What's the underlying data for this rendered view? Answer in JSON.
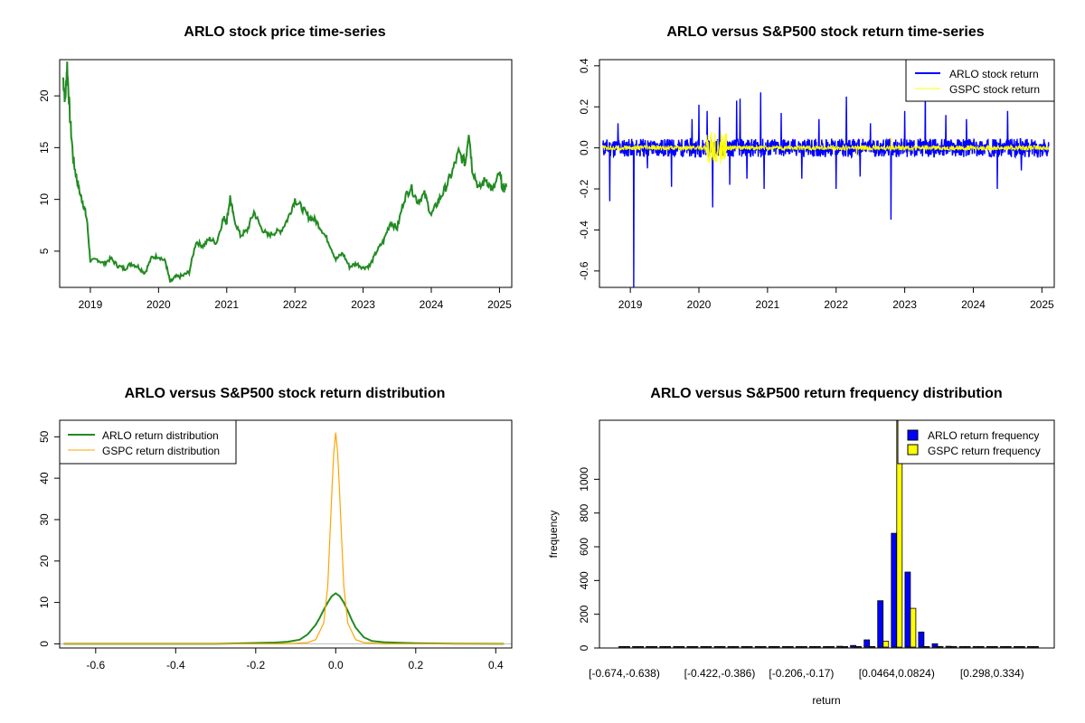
{
  "colors": {
    "arlo_price": "#228B22",
    "arlo_return": "#0000FF",
    "gspc_return": "#FFFF00",
    "arlo_density": "#228B22",
    "gspc_density": "#FFA500",
    "arlo_hist": "#0000FF",
    "gspc_hist": "#FFFF00"
  },
  "chart_data": [
    {
      "type": "line",
      "title": "ARLO stock price time-series",
      "xlabel": "",
      "ylabel": "",
      "x_ticks": [
        "2019",
        "2020",
        "2021",
        "2022",
        "2023",
        "2024",
        "2025"
      ],
      "y_ticks": [
        "5",
        "10",
        "15",
        "20"
      ],
      "xlim": [
        2018.55,
        2025.18
      ],
      "ylim": [
        1.5,
        23.5
      ],
      "series": [
        {
          "color": "arlo_price",
          "x": [
            2018.6,
            2018.63,
            2018.66,
            2018.7,
            2018.75,
            2018.8,
            2018.85,
            2018.9,
            2018.95,
            2019.0,
            2019.1,
            2019.2,
            2019.3,
            2019.4,
            2019.5,
            2019.6,
            2019.7,
            2019.8,
            2019.9,
            2020.0,
            2020.1,
            2020.17,
            2020.25,
            2020.35,
            2020.45,
            2020.55,
            2020.65,
            2020.75,
            2020.85,
            2020.95,
            2021.0,
            2021.05,
            2021.1,
            2021.2,
            2021.3,
            2021.4,
            2021.5,
            2021.6,
            2021.7,
            2021.8,
            2021.9,
            2022.0,
            2022.1,
            2022.2,
            2022.3,
            2022.4,
            2022.5,
            2022.6,
            2022.7,
            2022.8,
            2022.9,
            2023.0,
            2023.1,
            2023.2,
            2023.3,
            2023.4,
            2023.5,
            2023.6,
            2023.7,
            2023.8,
            2023.9,
            2024.0,
            2024.1,
            2024.2,
            2024.3,
            2024.4,
            2024.5,
            2024.55,
            2024.6,
            2024.7,
            2024.8,
            2024.9,
            2025.0,
            2025.05,
            2025.1
          ],
          "y": [
            21.8,
            19.5,
            23.0,
            18.0,
            13.8,
            12.0,
            10.5,
            9.5,
            8.0,
            4.0,
            4.2,
            3.8,
            4.3,
            3.6,
            3.3,
            3.8,
            3.5,
            2.9,
            4.4,
            4.5,
            4.0,
            2.0,
            2.5,
            2.6,
            3.0,
            5.9,
            5.5,
            6.2,
            5.8,
            8.2,
            7.9,
            10.2,
            8.3,
            6.5,
            7.0,
            8.8,
            7.3,
            6.5,
            6.8,
            7.0,
            8.2,
            10.0,
            9.2,
            8.3,
            8.0,
            7.0,
            5.8,
            4.2,
            4.8,
            3.5,
            3.8,
            3.4,
            3.6,
            5.0,
            6.0,
            7.8,
            7.2,
            10.0,
            11.2,
            9.8,
            10.5,
            8.5,
            9.8,
            11.0,
            12.5,
            14.5,
            13.5,
            16.7,
            13.0,
            11.0,
            12.0,
            10.8,
            12.5,
            11.0,
            11.2
          ]
        }
      ]
    },
    {
      "type": "line",
      "title": "ARLO versus S&P500 stock return time-series",
      "xlabel": "",
      "ylabel": "",
      "x_ticks": [
        "2019",
        "2020",
        "2021",
        "2022",
        "2023",
        "2024",
        "2025"
      ],
      "y_ticks": [
        "-0.6",
        "-0.4",
        "-0.2",
        "0.0",
        "0.2",
        "0.4"
      ],
      "xlim": [
        2018.55,
        2025.18
      ],
      "ylim": [
        -0.68,
        0.43
      ],
      "legend_position": "top-right",
      "legend": [
        "ARLO stock return",
        "GSPC stock return"
      ],
      "series": [
        {
          "name": "ARLO stock return",
          "color": "arlo_return",
          "band": 0.045,
          "spikes": [
            [
              2018.7,
              -0.26
            ],
            [
              2018.82,
              0.12
            ],
            [
              2019.05,
              -0.68
            ],
            [
              2019.25,
              -0.1
            ],
            [
              2019.6,
              -0.19
            ],
            [
              2019.9,
              0.14
            ],
            [
              2020.0,
              0.21
            ],
            [
              2020.12,
              0.18
            ],
            [
              2020.2,
              -0.29
            ],
            [
              2020.3,
              0.15
            ],
            [
              2020.45,
              -0.18
            ],
            [
              2020.55,
              0.23
            ],
            [
              2020.6,
              0.24
            ],
            [
              2020.7,
              -0.15
            ],
            [
              2020.9,
              0.27
            ],
            [
              2020.95,
              -0.2
            ],
            [
              2021.2,
              0.17
            ],
            [
              2021.5,
              -0.15
            ],
            [
              2021.75,
              0.14
            ],
            [
              2022.0,
              -0.2
            ],
            [
              2022.15,
              0.25
            ],
            [
              2022.35,
              -0.14
            ],
            [
              2022.5,
              0.12
            ],
            [
              2022.8,
              -0.35
            ],
            [
              2023.0,
              0.18
            ],
            [
              2023.3,
              0.29
            ],
            [
              2023.6,
              0.16
            ],
            [
              2023.9,
              0.14
            ],
            [
              2024.35,
              -0.2
            ],
            [
              2024.5,
              0.18
            ],
            [
              2024.7,
              -0.11
            ]
          ]
        },
        {
          "name": "GSPC stock return",
          "color": "gspc_return",
          "band": 0.012,
          "spikes": [
            [
              2020.15,
              0.09
            ],
            [
              2020.2,
              -0.12
            ],
            [
              2020.25,
              0.07
            ],
            [
              2022.3,
              -0.04
            ],
            [
              2022.8,
              0.05
            ]
          ]
        }
      ]
    },
    {
      "type": "line",
      "title": "ARLO versus S&P500 stock return distribution",
      "xlabel": "",
      "ylabel": "",
      "x_ticks": [
        "-0.6",
        "-0.4",
        "-0.2",
        "0.0",
        "0.2",
        "0.4"
      ],
      "y_ticks": [
        "0",
        "10",
        "20",
        "30",
        "40",
        "50"
      ],
      "xlim": [
        -0.69,
        0.44
      ],
      "ylim": [
        -1,
        54
      ],
      "legend_position": "top-left",
      "legend": [
        "ARLO return distribution",
        "GSPC return distribution"
      ],
      "series": [
        {
          "name": "ARLO return distribution",
          "color": "arlo_density",
          "x": [
            -0.68,
            -0.3,
            -0.2,
            -0.15,
            -0.12,
            -0.09,
            -0.07,
            -0.05,
            -0.04,
            -0.03,
            -0.02,
            -0.01,
            0.0,
            0.01,
            0.02,
            0.03,
            0.04,
            0.05,
            0.07,
            0.09,
            0.12,
            0.16,
            0.2,
            0.3,
            0.42
          ],
          "y": [
            0,
            0,
            0.2,
            0.3,
            0.5,
            1.0,
            2.3,
            4.6,
            6.3,
            8.2,
            10.0,
            11.5,
            12.2,
            11.5,
            10.0,
            8.0,
            5.8,
            3.9,
            1.6,
            0.7,
            0.4,
            0.25,
            0.15,
            0.05,
            0
          ]
        },
        {
          "name": "GSPC return distribution",
          "color": "gspc_density",
          "x": [
            -0.68,
            -0.12,
            -0.07,
            -0.05,
            -0.03,
            -0.02,
            -0.01,
            -0.005,
            0.0,
            0.005,
            0.01,
            0.02,
            0.03,
            0.05,
            0.07,
            0.12,
            0.42
          ],
          "y": [
            0,
            0,
            0.3,
            1.0,
            5.0,
            14.0,
            36.0,
            46.0,
            51.0,
            46.0,
            36.0,
            14.0,
            5.0,
            1.0,
            0.3,
            0,
            0
          ]
        }
      ]
    },
    {
      "type": "bar",
      "title": "ARLO versus S&P500 return frequency distribution",
      "xlabel": "return",
      "ylabel": "frequency",
      "x_ticks": [
        "[-0.674,-0.638)",
        "[-0.422,-0.386)",
        "[-0.206,-0.17)",
        "[0.0464,0.0824)",
        "[0.298,0.334)"
      ],
      "x_tick_bins": [
        0,
        7,
        13,
        20,
        27
      ],
      "y_ticks": [
        "0",
        "200",
        "400",
        "600",
        "800",
        "1000"
      ],
      "ylim": [
        0,
        1350
      ],
      "legend_position": "top-right",
      "legend": [
        "ARLO return frequency",
        "GSPC return frequency"
      ],
      "series": [
        {
          "name": "ARLO return frequency",
          "color": "arlo_hist",
          "values": [
            1,
            0,
            0,
            0,
            0,
            0,
            0,
            0,
            0,
            0,
            0,
            0,
            1,
            2,
            3,
            5,
            10,
            15,
            48,
            280,
            680,
            450,
            95,
            25,
            10,
            5,
            3,
            2,
            1,
            1,
            1
          ]
        },
        {
          "name": "GSPC return frequency",
          "color": "gspc_hist",
          "values": [
            0,
            0,
            0,
            0,
            0,
            0,
            0,
            0,
            0,
            0,
            0,
            0,
            0,
            0,
            0,
            0,
            0,
            0,
            0,
            40,
            1400,
            235,
            0,
            0,
            0,
            0,
            0,
            0,
            0,
            0,
            0
          ]
        }
      ]
    }
  ]
}
